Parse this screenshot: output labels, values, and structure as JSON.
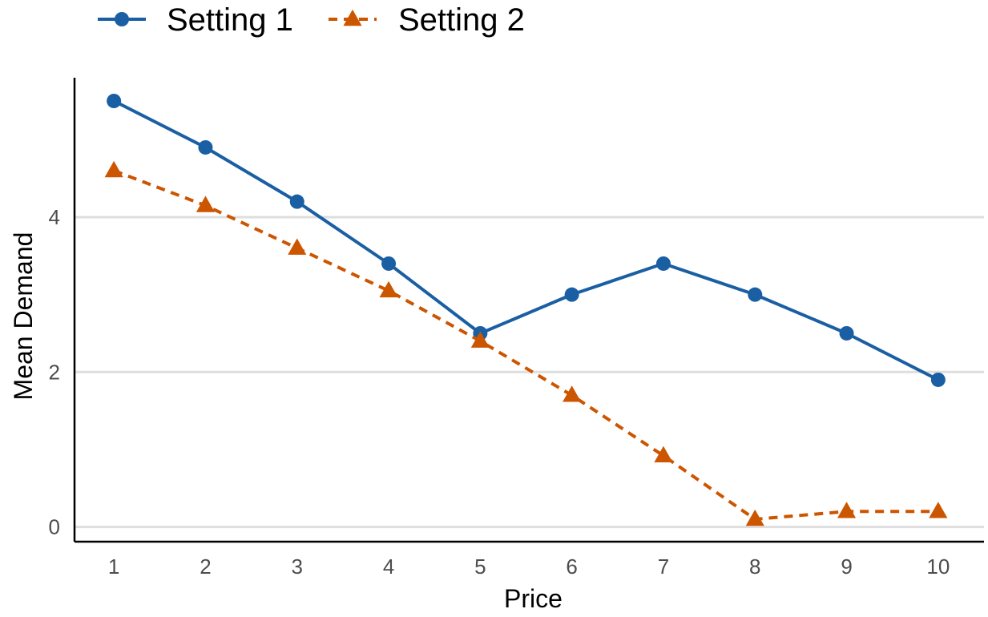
{
  "chart_data": {
    "type": "line",
    "title": "",
    "xlabel": "Price",
    "ylabel": "Mean Demand",
    "x": [
      1,
      2,
      3,
      4,
      5,
      6,
      7,
      8,
      9,
      10
    ],
    "xlim": [
      0.57,
      10.5
    ],
    "ylim": [
      -0.19,
      5.8
    ],
    "x_ticks": [
      "1",
      "2",
      "3",
      "4",
      "5",
      "6",
      "7",
      "8",
      "9",
      "10"
    ],
    "y_ticks": [
      "0",
      "2",
      "4"
    ],
    "y_tick_values": [
      0,
      2,
      4
    ],
    "grid": "horizontal major gridlines",
    "legend_position": "top-left",
    "series": [
      {
        "name": "Setting 1",
        "values": [
          5.5,
          4.9,
          4.2,
          3.4,
          2.5,
          3.0,
          3.4,
          3.0,
          2.5,
          1.9
        ],
        "color": "#1a5fa3",
        "line_style": "solid",
        "marker": "circle"
      },
      {
        "name": "Setting 2",
        "values": [
          4.6,
          4.15,
          3.6,
          3.05,
          2.4,
          1.7,
          0.92,
          0.1,
          0.2,
          0.2
        ],
        "color": "#cc5500",
        "line_style": "dashed",
        "marker": "triangle"
      }
    ]
  }
}
